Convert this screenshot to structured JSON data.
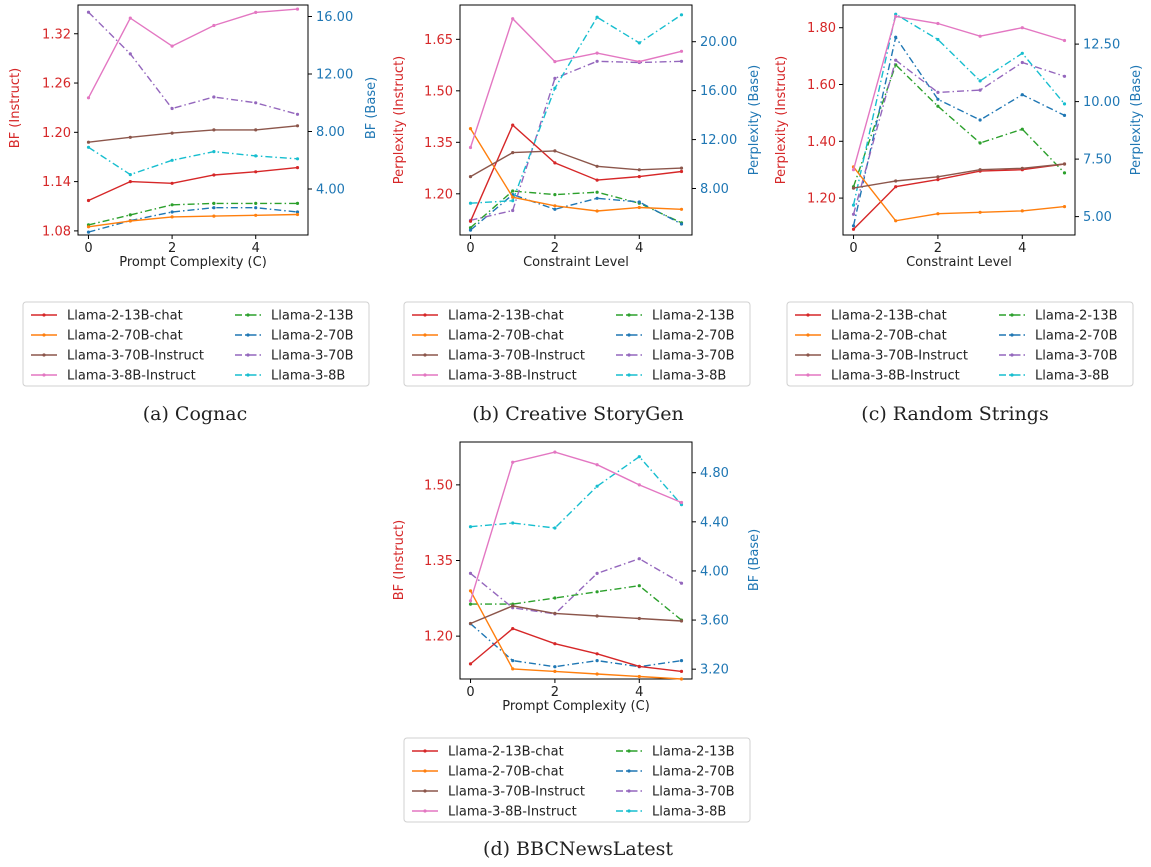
{
  "colors": {
    "instruct_axis": "#d62728",
    "base_axis": "#1f77b4",
    "Llama-2-13B-chat": "#d62728",
    "Llama-2-70B-chat": "#ff7f0e",
    "Llama-3-70B-Instruct": "#8c564b",
    "Llama-3-8B-Instruct": "#e377c2",
    "Llama-2-13B": "#2ca02c",
    "Llama-2-70B": "#1f77b4",
    "Llama-3-70B": "#9467bd",
    "Llama-3-8B": "#17becf"
  },
  "legend": {
    "left": [
      "Llama-2-13B-chat",
      "Llama-2-70B-chat",
      "Llama-3-70B-Instruct",
      "Llama-3-8B-Instruct"
    ],
    "right": [
      "Llama-2-13B",
      "Llama-2-70B",
      "Llama-3-70B",
      "Llama-3-8B"
    ]
  },
  "chart_data": [
    {
      "type": "line",
      "caption": "(a) Cognac",
      "xlabel": "Prompt Complexity (C)",
      "ylabel_left": "BF (Instruct)",
      "ylabel_right": "BF (Base)",
      "x": [
        0,
        1,
        2,
        3,
        4,
        5
      ],
      "xticks": [
        "0",
        "2",
        "4"
      ],
      "xlim": [
        -0.25,
        5.25
      ],
      "ylim_left": [
        1.075,
        1.355
      ],
      "ylim_right": [
        0.8,
        16.8
      ],
      "yticks_left": [
        "1.08",
        "1.14",
        "1.20",
        "1.26",
        "1.32"
      ],
      "yticks_right": [
        "4.00",
        "8.00",
        "12.00",
        "16.00"
      ],
      "series_instruct": [
        {
          "name": "Llama-2-13B-chat",
          "values": [
            1.117,
            1.14,
            1.138,
            1.148,
            1.152,
            1.157
          ]
        },
        {
          "name": "Llama-2-70B-chat",
          "values": [
            1.085,
            1.092,
            1.097,
            1.098,
            1.099,
            1.1
          ]
        },
        {
          "name": "Llama-3-70B-Instruct",
          "values": [
            1.188,
            1.194,
            1.199,
            1.203,
            1.203,
            1.208
          ]
        },
        {
          "name": "Llama-3-8B-Instruct",
          "values": [
            1.242,
            1.339,
            1.305,
            1.33,
            1.346,
            1.35
          ]
        }
      ],
      "series_base": [
        {
          "name": "Llama-2-13B",
          "values": [
            1.5,
            2.2,
            2.9,
            3.0,
            3.0,
            3.0
          ]
        },
        {
          "name": "Llama-2-70B",
          "values": [
            1.0,
            1.8,
            2.4,
            2.7,
            2.7,
            2.4
          ]
        },
        {
          "name": "Llama-3-70B",
          "values": [
            16.3,
            13.4,
            9.6,
            10.4,
            10.0,
            9.2
          ]
        },
        {
          "name": "Llama-3-8B",
          "values": [
            6.9,
            5.0,
            6.0,
            6.6,
            6.3,
            6.1
          ]
        }
      ]
    },
    {
      "type": "line",
      "caption": "(b) Creative StoryGen",
      "xlabel": "Constraint Level",
      "ylabel_left": "Perplexity (Instruct)",
      "ylabel_right": "Perplexity (Base)",
      "x": [
        0,
        1,
        2,
        3,
        4,
        5
      ],
      "xticks": [
        "0",
        "2",
        "4"
      ],
      "xlim": [
        -0.25,
        5.25
      ],
      "ylim_left": [
        1.08,
        1.75
      ],
      "ylim_right": [
        4.2,
        23.0
      ],
      "yticks_left": [
        "1.20",
        "1.35",
        "1.50",
        "1.65"
      ],
      "yticks_right": [
        "8.00",
        "12.00",
        "16.00",
        "20.00"
      ],
      "series_instruct": [
        {
          "name": "Llama-2-13B-chat",
          "values": [
            1.12,
            1.4,
            1.29,
            1.24,
            1.25,
            1.265
          ]
        },
        {
          "name": "Llama-2-70B-chat",
          "values": [
            1.39,
            1.19,
            1.165,
            1.15,
            1.16,
            1.155
          ]
        },
        {
          "name": "Llama-3-70B-Instruct",
          "values": [
            1.25,
            1.32,
            1.325,
            1.28,
            1.27,
            1.275
          ]
        },
        {
          "name": "Llama-3-8B-Instruct",
          "values": [
            1.335,
            1.71,
            1.585,
            1.61,
            1.585,
            1.615
          ]
        }
      ],
      "series_base": [
        {
          "name": "Llama-2-13B",
          "values": [
            4.8,
            7.8,
            7.5,
            7.7,
            6.8,
            5.2
          ]
        },
        {
          "name": "Llama-2-70B",
          "values": [
            4.6,
            7.5,
            6.3,
            7.2,
            6.9,
            5.1
          ]
        },
        {
          "name": "Llama-3-70B",
          "values": [
            5.4,
            6.2,
            17.0,
            18.4,
            18.3,
            18.4
          ]
        },
        {
          "name": "Llama-3-8B",
          "values": [
            6.8,
            7.0,
            16.2,
            22.0,
            19.9,
            22.2
          ]
        }
      ]
    },
    {
      "type": "line",
      "caption": "(c) Random Strings",
      "xlabel": "Constraint Level",
      "ylabel_left": "Perplexity (Instruct)",
      "ylabel_right": "Perplexity (Base)",
      "x": [
        0,
        1,
        2,
        3,
        4,
        5
      ],
      "xticks": [
        "0",
        "2",
        "4"
      ],
      "xlim": [
        -0.25,
        5.25
      ],
      "ylim_left": [
        1.07,
        1.88
      ],
      "ylim_right": [
        4.2,
        14.2
      ],
      "yticks_left": [
        "1.20",
        "1.40",
        "1.60",
        "1.80"
      ],
      "yticks_right": [
        "5.00",
        "7.50",
        "10.00",
        "12.50"
      ],
      "series_instruct": [
        {
          "name": "Llama-2-13B-chat",
          "values": [
            1.09,
            1.24,
            1.265,
            1.295,
            1.3,
            1.32
          ]
        },
        {
          "name": "Llama-2-70B-chat",
          "values": [
            1.31,
            1.12,
            1.145,
            1.15,
            1.155,
            1.17
          ]
        },
        {
          "name": "Llama-3-70B-Instruct",
          "values": [
            1.235,
            1.26,
            1.275,
            1.3,
            1.305,
            1.32
          ]
        },
        {
          "name": "Llama-3-8B-Instruct",
          "values": [
            1.3,
            1.84,
            1.815,
            1.77,
            1.8,
            1.755
          ]
        }
      ],
      "series_base": [
        {
          "name": "Llama-2-13B",
          "values": [
            6.3,
            11.6,
            9.8,
            8.2,
            8.8,
            6.9
          ]
        },
        {
          "name": "Llama-2-70B",
          "values": [
            4.6,
            12.8,
            10.1,
            9.2,
            10.3,
            9.4
          ]
        },
        {
          "name": "Llama-3-70B",
          "values": [
            5.1,
            11.8,
            10.4,
            10.5,
            11.7,
            11.1
          ]
        },
        {
          "name": "Llama-3-8B",
          "values": [
            5.5,
            13.8,
            12.7,
            10.9,
            12.1,
            9.9
          ]
        }
      ]
    },
    {
      "type": "line",
      "caption": "(d) BBCNewsLatest",
      "xlabel": "Prompt Complexity (C)",
      "ylabel_left": "BF (Instruct)",
      "ylabel_right": "BF (Base)",
      "x": [
        0,
        1,
        2,
        3,
        4,
        5
      ],
      "xticks": [
        "0",
        "2",
        "4"
      ],
      "xlim": [
        -0.25,
        5.25
      ],
      "ylim_left": [
        1.115,
        1.585
      ],
      "ylim_right": [
        3.12,
        5.05
      ],
      "yticks_left": [
        "1.20",
        "1.35",
        "1.50"
      ],
      "yticks_right": [
        "3.20",
        "3.60",
        "4.00",
        "4.40",
        "4.80"
      ],
      "series_instruct": [
        {
          "name": "Llama-2-13B-chat",
          "values": [
            1.145,
            1.215,
            1.185,
            1.165,
            1.14,
            1.13
          ]
        },
        {
          "name": "Llama-2-70B-chat",
          "values": [
            1.29,
            1.135,
            1.13,
            1.125,
            1.12,
            1.115
          ]
        },
        {
          "name": "Llama-3-70B-Instruct",
          "values": [
            1.225,
            1.26,
            1.245,
            1.24,
            1.235,
            1.23
          ]
        },
        {
          "name": "Llama-3-8B-Instruct",
          "values": [
            1.27,
            1.545,
            1.565,
            1.54,
            1.5,
            1.465
          ]
        }
      ],
      "series_base": [
        {
          "name": "Llama-2-13B",
          "values": [
            3.73,
            3.73,
            3.78,
            3.83,
            3.88,
            3.6
          ]
        },
        {
          "name": "Llama-2-70B",
          "values": [
            3.57,
            3.27,
            3.22,
            3.27,
            3.22,
            3.27
          ]
        },
        {
          "name": "Llama-3-70B",
          "values": [
            3.98,
            3.7,
            3.65,
            3.98,
            4.1,
            3.9
          ]
        },
        {
          "name": "Llama-3-8B",
          "values": [
            4.36,
            4.39,
            4.35,
            4.69,
            4.93,
            4.54
          ]
        }
      ]
    }
  ]
}
